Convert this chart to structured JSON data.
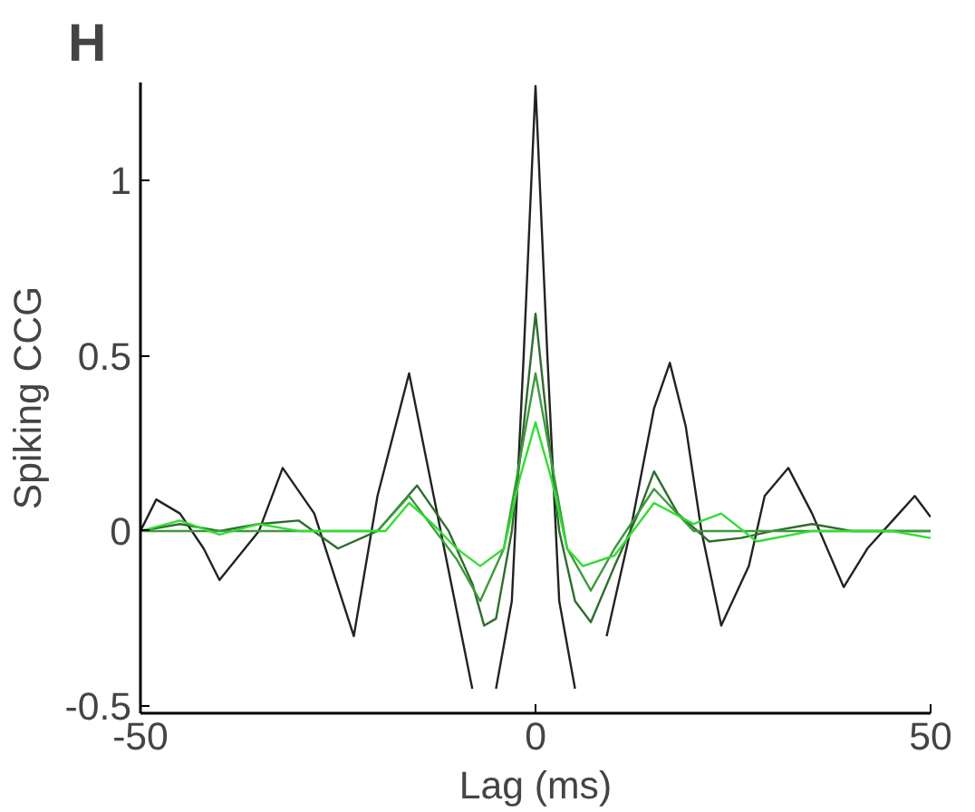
{
  "chart_data": {
    "type": "line",
    "title": "H",
    "xlabel": "Lag (ms)",
    "ylabel": "Spiking CCG",
    "xlim": [
      -50,
      50
    ],
    "xticks": [
      -50,
      0,
      50
    ],
    "ylim": [
      -0.52,
      1.28
    ],
    "yticks": [
      -0.5,
      0,
      0.5,
      1
    ],
    "grid": false,
    "line_style": "solid",
    "marker": "none",
    "series": [
      {
        "color": "#222222",
        "x": [
          -50,
          -48,
          -45,
          -42,
          -40,
          -35,
          -32,
          -28,
          -23,
          -20,
          -16,
          -12,
          -8,
          -6.5,
          -5,
          -3,
          -1.5,
          0,
          1.5,
          3,
          5,
          6.5,
          9,
          12,
          15,
          17,
          19,
          21,
          23.5,
          27,
          29,
          32,
          35,
          39,
          42,
          46,
          48,
          50
        ],
        "values": [
          0.0,
          0.09,
          0.05,
          -0.05,
          -0.14,
          0.0,
          0.18,
          0.05,
          -0.3,
          0.1,
          0.45,
          0.0,
          -0.45,
          null,
          -0.45,
          -0.2,
          0.5,
          1.27,
          0.5,
          -0.2,
          -0.45,
          null,
          -0.3,
          0.0,
          0.35,
          0.48,
          0.3,
          0.0,
          -0.27,
          -0.1,
          0.1,
          0.18,
          0.05,
          -0.16,
          -0.05,
          0.05,
          0.1,
          0.04
        ]
      },
      {
        "color": "#2f6b2f",
        "x": [
          -50,
          -45,
          -40,
          -35,
          -30,
          -25,
          -20,
          -15,
          -11,
          -8,
          -6.5,
          -5,
          -3,
          -1.5,
          0,
          1.5,
          3,
          5,
          7,
          10,
          13,
          15,
          18,
          22,
          26,
          30,
          35,
          40,
          45,
          50
        ],
        "values": [
          0.0,
          0.02,
          0.0,
          0.02,
          0.03,
          -0.05,
          0.0,
          0.13,
          0.0,
          -0.15,
          -0.27,
          -0.25,
          0.0,
          0.3,
          0.62,
          0.3,
          0.0,
          -0.2,
          -0.26,
          -0.1,
          0.05,
          0.17,
          0.05,
          -0.03,
          -0.02,
          0.0,
          0.02,
          0.0,
          0.0,
          0.0
        ]
      },
      {
        "color": "#3c9a3c",
        "x": [
          -50,
          -40,
          -30,
          -20,
          -16,
          -10,
          -7,
          -4,
          -2,
          0,
          2,
          4,
          7,
          10,
          15,
          20,
          30,
          40,
          50
        ],
        "values": [
          0.0,
          0.0,
          0.0,
          0.0,
          0.1,
          -0.08,
          -0.2,
          -0.05,
          0.2,
          0.45,
          0.2,
          -0.05,
          -0.17,
          -0.05,
          0.12,
          0.0,
          0.0,
          0.0,
          0.0
        ]
      },
      {
        "color": "#33dd33",
        "x": [
          -50,
          -45,
          -40,
          -35,
          -30,
          -25,
          -19,
          -16,
          -13,
          -10,
          -7,
          -4,
          -2,
          0,
          2,
          4,
          6,
          10,
          15,
          20,
          23.5,
          28,
          35,
          40,
          45,
          50
        ],
        "values": [
          0.0,
          0.03,
          -0.01,
          0.02,
          0.0,
          0.0,
          0.0,
          0.08,
          0.02,
          -0.05,
          -0.1,
          -0.05,
          0.15,
          0.31,
          0.15,
          -0.05,
          -0.1,
          -0.07,
          0.08,
          0.02,
          0.05,
          -0.03,
          0.0,
          0.0,
          0.0,
          -0.02
        ]
      }
    ]
  }
}
